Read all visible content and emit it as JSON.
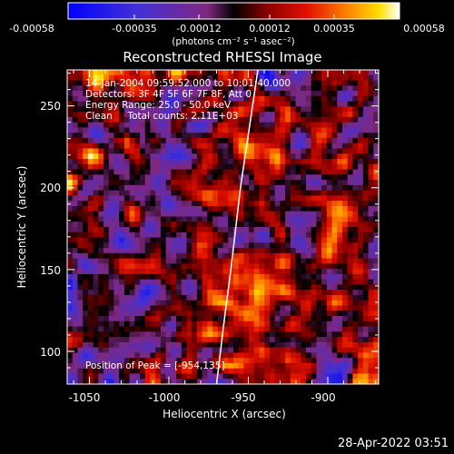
{
  "colorbar": {
    "ticks": [
      "-0.00058",
      "-0.00035",
      "-0.00012",
      "0.00012",
      "0.00035",
      "0.00058"
    ],
    "units": "(photons cm⁻² s⁻¹ asec⁻²)",
    "colors": [
      "#1a1aff",
      "#4b2bd0",
      "#7a3aa0",
      "#000000",
      "#8a0000",
      "#d02000",
      "#ff7000",
      "#ffd000",
      "#ffffff"
    ]
  },
  "chart_data": {
    "type": "heatmap",
    "title": "Reconstructed RHESSI Image",
    "xlabel": "Heliocentric X (arcsec)",
    "ylabel": "Heliocentric Y (arcsec)",
    "xlim": [
      -1064,
      -868
    ],
    "ylim": [
      80,
      272
    ],
    "x_ticks": [
      -1050,
      -1000,
      -950,
      -900
    ],
    "y_ticks": [
      100,
      150,
      200,
      250
    ],
    "x_tick_labels": [
      "-1050",
      "-1000",
      "-950",
      "-900"
    ],
    "y_tick_labels": [
      "100",
      "150",
      "200",
      "250"
    ],
    "color_range": [
      -0.00058,
      0.00058
    ],
    "limb_line": [
      [
        -970,
        80
      ],
      [
        -965,
        120
      ],
      [
        -961,
        150
      ],
      [
        -955,
        200
      ],
      [
        -944,
        272
      ]
    ],
    "annotations": {
      "time": "14-Jan-2004 09:59:52.000 to 10:01:40.000",
      "detectors": "Detectors: 3F 4F 5F 6F 7F 8F, Att 0",
      "energy": "Energy Range: 25.0 - 50.0 keV",
      "clean": "Clean     Total counts: 2.11E+03",
      "peak": "Position of Peak = [-954,135]"
    },
    "peak": [
      -954,
      135
    ]
  },
  "footer": {
    "timestamp": "28-Apr-2022 03:51"
  }
}
